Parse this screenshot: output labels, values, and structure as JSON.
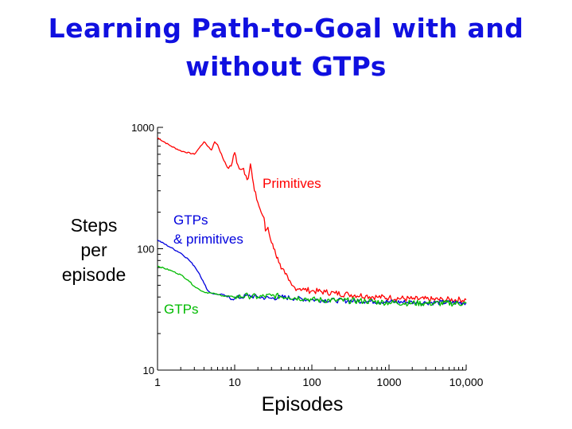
{
  "slide": {
    "title_line1": "Learning Path-to-Goal with and",
    "title_line2": "without GTPs"
  },
  "colors": {
    "primitives": "#ff0000",
    "gtps_and_primitives": "#0000dd",
    "gtps": "#00bb00",
    "title": "#1010e0"
  },
  "chart_data": {
    "type": "line",
    "xscale": "log",
    "yscale": "log",
    "xlim": [
      1,
      10000
    ],
    "ylim": [
      10,
      1000
    ],
    "xlabel": "Episodes",
    "ylabel_lines": [
      "Steps",
      "per",
      "episode"
    ],
    "x_ticks": [
      1,
      10,
      100,
      1000,
      10000
    ],
    "x_tick_labels": [
      "1",
      "10",
      "100",
      "1000",
      "10,000"
    ],
    "y_ticks": [
      10,
      100,
      1000
    ],
    "y_tick_labels": [
      "10",
      "100",
      "1000"
    ],
    "grid": false,
    "series": [
      {
        "name": "Primitives",
        "color": "#ff0000",
        "points": [
          [
            1,
            820
          ],
          [
            1.5,
            700
          ],
          [
            2,
            640
          ],
          [
            3,
            600
          ],
          [
            3.5,
            680
          ],
          [
            4,
            760
          ],
          [
            5,
            650
          ],
          [
            5.5,
            760
          ],
          [
            6,
            720
          ],
          [
            7,
            560
          ],
          [
            8,
            470
          ],
          [
            9,
            480
          ],
          [
            10,
            620
          ],
          [
            11,
            490
          ],
          [
            12,
            450
          ],
          [
            13,
            460
          ],
          [
            14,
            400
          ],
          [
            15,
            380
          ],
          [
            16,
            500
          ],
          [
            17,
            380
          ],
          [
            18,
            300
          ],
          [
            20,
            240
          ],
          [
            22,
            200
          ],
          [
            24,
            180
          ],
          [
            25,
            140
          ],
          [
            27,
            150
          ],
          [
            29,
            120
          ],
          [
            31,
            110
          ],
          [
            34,
            90
          ],
          [
            36,
            85
          ],
          [
            40,
            68
          ],
          [
            45,
            62
          ],
          [
            50,
            55
          ],
          [
            55,
            50
          ],
          [
            60,
            48
          ],
          [
            70,
            47
          ],
          [
            80,
            46
          ],
          [
            100,
            45
          ],
          [
            150,
            44
          ],
          [
            200,
            43
          ],
          [
            300,
            42
          ],
          [
            500,
            41
          ],
          [
            700,
            40
          ],
          [
            1000,
            39.5
          ],
          [
            2000,
            38.5
          ],
          [
            5000,
            38
          ],
          [
            10000,
            38
          ]
        ]
      },
      {
        "name": "GTPs & primitives",
        "color": "#0000dd",
        "points": [
          [
            1,
            118
          ],
          [
            1.5,
            102
          ],
          [
            2,
            92
          ],
          [
            2.5,
            82
          ],
          [
            3,
            72
          ],
          [
            3.5,
            62
          ],
          [
            4,
            52
          ],
          [
            4.5,
            45
          ],
          [
            5,
            43
          ],
          [
            6,
            42
          ],
          [
            7,
            42
          ],
          [
            8,
            40
          ],
          [
            10,
            39
          ],
          [
            15,
            41
          ],
          [
            20,
            40
          ],
          [
            30,
            39
          ],
          [
            40,
            40
          ],
          [
            60,
            39
          ],
          [
            100,
            38
          ],
          [
            200,
            37.5
          ],
          [
            500,
            37
          ],
          [
            1000,
            36.5
          ],
          [
            3000,
            36
          ],
          [
            10000,
            36
          ]
        ]
      },
      {
        "name": "GTPs",
        "color": "#00bb00",
        "points": [
          [
            1,
            72
          ],
          [
            1.5,
            66
          ],
          [
            2,
            61
          ],
          [
            2.5,
            55
          ],
          [
            3,
            49
          ],
          [
            3.5,
            46
          ],
          [
            4,
            44
          ],
          [
            5,
            43
          ],
          [
            6,
            42
          ],
          [
            7,
            41
          ],
          [
            10,
            40
          ],
          [
            15,
            41
          ],
          [
            20,
            40
          ],
          [
            30,
            41
          ],
          [
            50,
            40
          ],
          [
            80,
            39
          ],
          [
            100,
            38
          ],
          [
            200,
            37.5
          ],
          [
            500,
            37
          ],
          [
            1000,
            36
          ],
          [
            3000,
            35.5
          ],
          [
            10000,
            35.5
          ]
        ]
      }
    ],
    "annotations": [
      {
        "text": "Primitives",
        "series": "Primitives"
      },
      {
        "text": "GTPs",
        "series": "GTPs & primitives"
      },
      {
        "text": "& primitives",
        "series": "GTPs & primitives"
      },
      {
        "text": "GTPs",
        "series": "GTPs"
      }
    ]
  }
}
